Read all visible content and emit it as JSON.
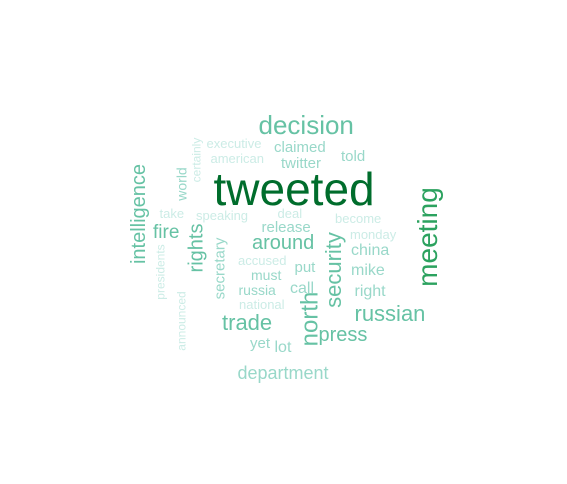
{
  "words": [
    {
      "text": "tweeted",
      "weight": 10,
      "color": "#006d2c",
      "rotated": false
    },
    {
      "text": "meeting",
      "weight": 7,
      "color": "#2ca25f",
      "rotated": true
    },
    {
      "text": "decision",
      "weight": 6,
      "color": "#66c2a4",
      "rotated": false
    },
    {
      "text": "north",
      "weight": 5,
      "color": "#66c2a4",
      "rotated": true
    },
    {
      "text": "security",
      "weight": 5,
      "color": "#66c2a4",
      "rotated": true
    },
    {
      "text": "russian",
      "weight": 5,
      "color": "#66c2a4",
      "rotated": false
    },
    {
      "text": "trade",
      "weight": 5,
      "color": "#66c2a4",
      "rotated": false
    },
    {
      "text": "intelligence",
      "weight": 4,
      "color": "#66c2a4",
      "rotated": true
    },
    {
      "text": "rights",
      "weight": 4,
      "color": "#66c2a4",
      "rotated": true
    },
    {
      "text": "around",
      "weight": 4,
      "color": "#66c2a4",
      "rotated": false
    },
    {
      "text": "press",
      "weight": 4,
      "color": "#66c2a4",
      "rotated": false
    },
    {
      "text": "fire",
      "weight": 4,
      "color": "#66c2a4",
      "rotated": false
    },
    {
      "text": "department",
      "weight": 4,
      "color": "#99d8c9",
      "rotated": false
    },
    {
      "text": "claimed",
      "weight": 3,
      "color": "#99d8c9",
      "rotated": false
    },
    {
      "text": "twitter",
      "weight": 3,
      "color": "#99d8c9",
      "rotated": false
    },
    {
      "text": "told",
      "weight": 3,
      "color": "#99d8c9",
      "rotated": false
    },
    {
      "text": "release",
      "weight": 3,
      "color": "#99d8c9",
      "rotated": false
    },
    {
      "text": "china",
      "weight": 3,
      "color": "#99d8c9",
      "rotated": false
    },
    {
      "text": "mike",
      "weight": 3,
      "color": "#99d8c9",
      "rotated": false
    },
    {
      "text": "right",
      "weight": 3,
      "color": "#99d8c9",
      "rotated": false
    },
    {
      "text": "call",
      "weight": 3,
      "color": "#99d8c9",
      "rotated": false
    },
    {
      "text": "secretary",
      "weight": 3,
      "color": "#99d8c9",
      "rotated": true
    },
    {
      "text": "world",
      "weight": 3,
      "color": "#99d8c9",
      "rotated": true
    },
    {
      "text": "lot",
      "weight": 3,
      "color": "#99d8c9",
      "rotated": false
    },
    {
      "text": "must",
      "weight": 2,
      "color": "#99d8c9",
      "rotated": false
    },
    {
      "text": "put",
      "weight": 2,
      "color": "#99d8c9",
      "rotated": false
    },
    {
      "text": "russia",
      "weight": 2,
      "color": "#99d8c9",
      "rotated": false
    },
    {
      "text": "yet",
      "weight": 2,
      "color": "#99d8c9",
      "rotated": false
    },
    {
      "text": "executive",
      "weight": 1,
      "color": "#ccece6",
      "rotated": false
    },
    {
      "text": "american",
      "weight": 1,
      "color": "#ccece6",
      "rotated": false
    },
    {
      "text": "certainly",
      "weight": 1,
      "color": "#ccece6",
      "rotated": true
    },
    {
      "text": "take",
      "weight": 1,
      "color": "#ccece6",
      "rotated": false
    },
    {
      "text": "speaking",
      "weight": 1,
      "color": "#ccece6",
      "rotated": false
    },
    {
      "text": "deal",
      "weight": 1,
      "color": "#ccece6",
      "rotated": false
    },
    {
      "text": "become",
      "weight": 1,
      "color": "#ccece6",
      "rotated": false
    },
    {
      "text": "monday",
      "weight": 1,
      "color": "#ccece6",
      "rotated": false
    },
    {
      "text": "accused",
      "weight": 1,
      "color": "#ccece6",
      "rotated": false
    },
    {
      "text": "national",
      "weight": 1,
      "color": "#ccece6",
      "rotated": false
    },
    {
      "text": "presidents",
      "weight": 1,
      "color": "#ccece6",
      "rotated": true
    },
    {
      "text": "announced",
      "weight": 1,
      "color": "#ccece6",
      "rotated": true
    }
  ]
}
